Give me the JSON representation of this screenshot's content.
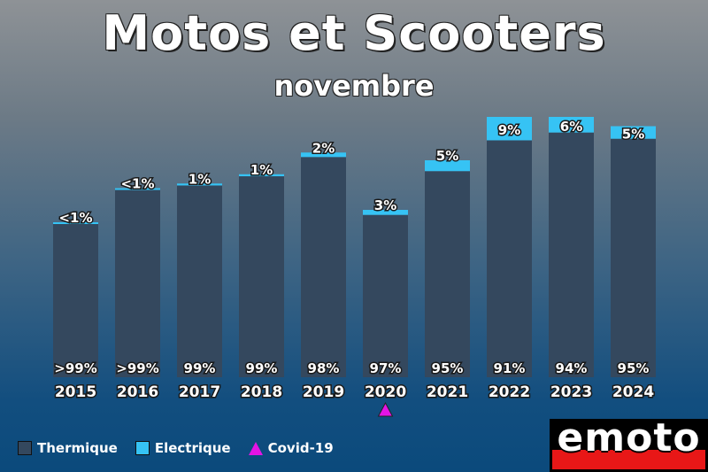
{
  "chart_data": {
    "type": "bar",
    "stacked": true,
    "title": "Motos et Scooters",
    "subtitle": "novembre",
    "categories": [
      "2015",
      "2016",
      "2017",
      "2018",
      "2019",
      "2020",
      "2021",
      "2022",
      "2023",
      "2024"
    ],
    "totals": [
      100,
      122,
      125,
      131,
      145,
      108,
      140,
      168,
      168,
      162
    ],
    "series": [
      {
        "name": "Thermique",
        "color": "#34485e",
        "share": [
          99.8,
          99.6,
          99,
          99,
          98,
          97,
          95,
          91,
          94,
          95
        ],
        "labels": [
          ">99%",
          ">99%",
          "99%",
          "99%",
          "98%",
          "97%",
          "95%",
          "91%",
          "94%",
          "95%"
        ]
      },
      {
        "name": "Electrique",
        "color": "#36c3f4",
        "share": [
          0.2,
          0.4,
          1,
          1,
          2,
          3,
          5,
          9,
          6,
          5
        ],
        "labels": [
          "<1%",
          "<1%",
          "1%",
          "1%",
          "2%",
          "3%",
          "5%",
          "9%",
          "6%",
          "5%"
        ]
      }
    ],
    "annotations": [
      {
        "category": "2020",
        "marker": "triangle",
        "name": "Covid-19",
        "color": "#e414e4"
      }
    ],
    "legend": {
      "position": "bottom-left",
      "items": [
        "Thermique",
        "Electrique",
        "Covid-19"
      ]
    },
    "grid": false
  },
  "logo": {
    "text": "emoto"
  }
}
